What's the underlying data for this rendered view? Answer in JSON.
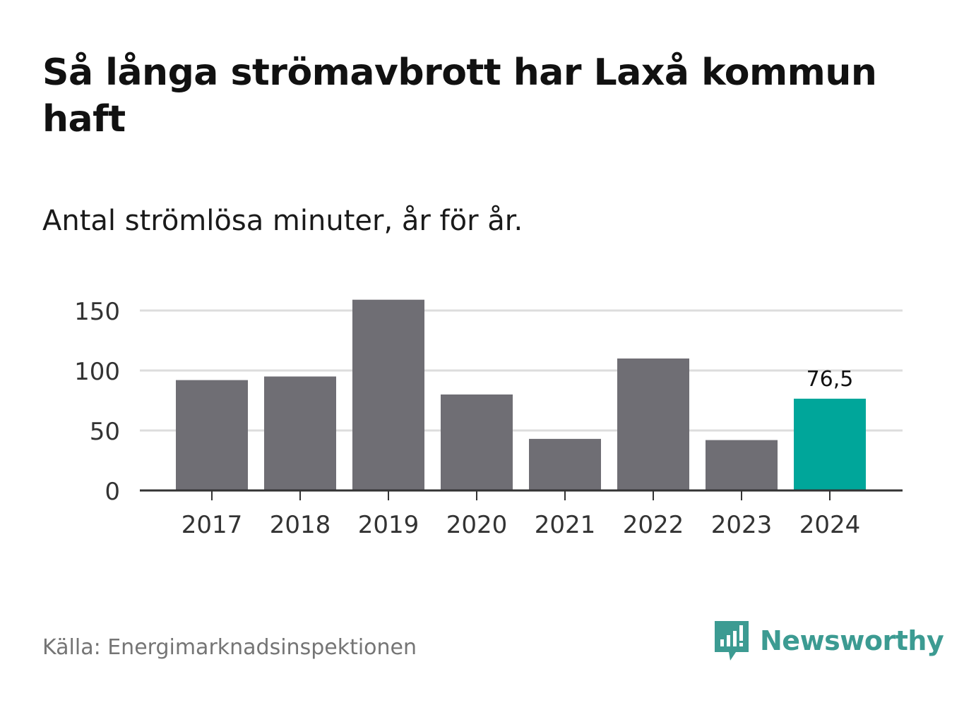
{
  "title": "Så långa strömavbrott har Laxå kommun haft",
  "subtitle": "Antal strömlösa minuter, år för år.",
  "source": "Källa: Energimarknadsinspektionen",
  "brand": {
    "name": "Newsworthy",
    "icon": "newsworthy-logo-icon",
    "color": "#3c9b92"
  },
  "colors": {
    "bar": "#6f6e74",
    "highlight": "#00a69a",
    "grid": "#dddddd",
    "axis": "#333333"
  },
  "chart_data": {
    "type": "bar",
    "title": "Så långa strömavbrott har Laxå kommun haft",
    "subtitle": "Antal strömlösa minuter, år för år.",
    "xlabel": "",
    "ylabel": "",
    "categories": [
      "2017",
      "2018",
      "2019",
      "2020",
      "2021",
      "2022",
      "2023",
      "2024"
    ],
    "values": [
      92,
      95,
      159,
      80,
      43,
      110,
      42,
      76.5
    ],
    "highlight_index": 7,
    "data_labels": [
      {
        "index": 7,
        "text": "76,5"
      }
    ],
    "ylim": [
      0,
      150
    ],
    "yticks": [
      0,
      50,
      100,
      150
    ],
    "ytick_labels": [
      "0",
      "50",
      "100",
      "150"
    ],
    "grid": true,
    "legend": "none"
  }
}
